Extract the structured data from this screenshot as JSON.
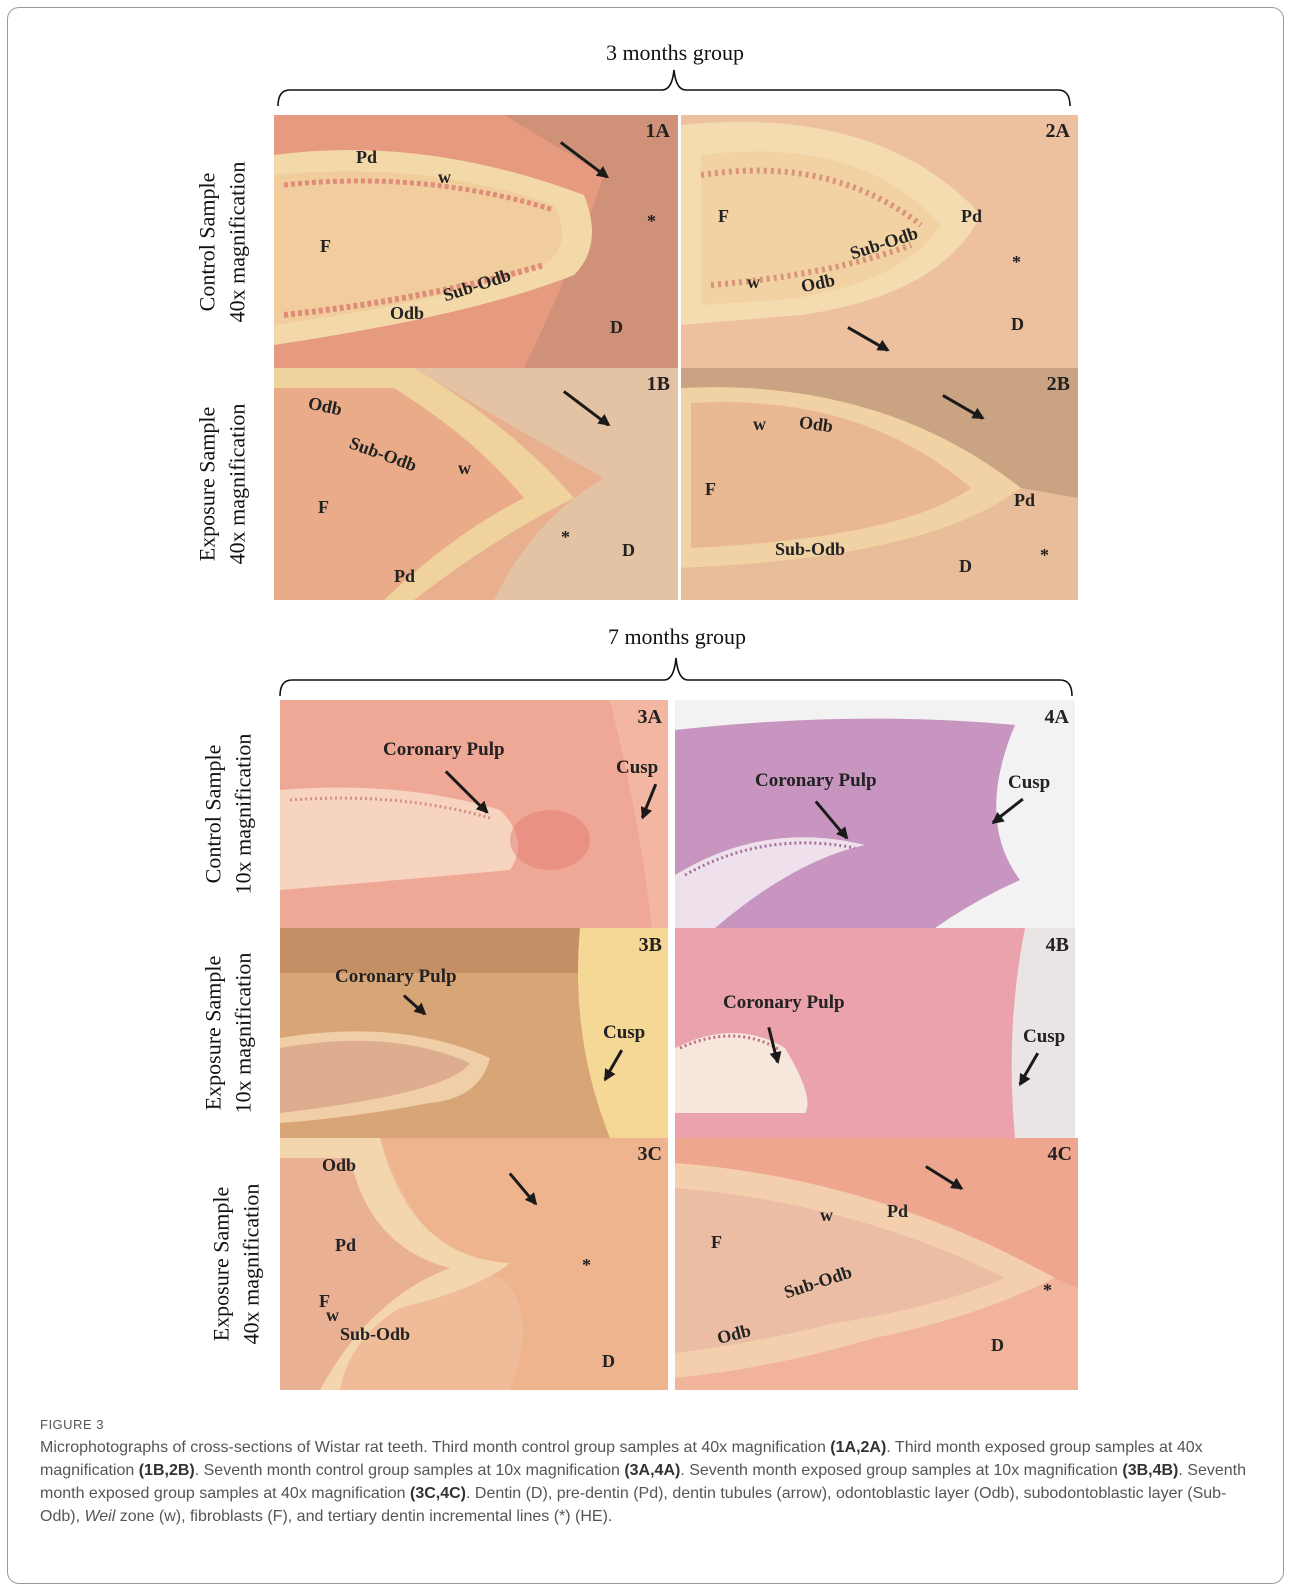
{
  "figure": {
    "group1_title": "3 months group",
    "group2_title": "7 months group",
    "rows": {
      "r1": [
        "Control Sample",
        "40x magnification"
      ],
      "r2": [
        "Exposure Sample",
        "40x magnification"
      ],
      "r3": [
        "Control Sample",
        "10x magnification"
      ],
      "r4": [
        "Exposure Sample",
        "10x magnification"
      ],
      "r5": [
        "Exposure Sample",
        "40x magnification"
      ]
    },
    "panels": {
      "p1A": {
        "id": "1A",
        "labels": [
          "Pd",
          "w",
          "*",
          "F",
          "Sub-Odb",
          "Odb",
          "D"
        ]
      },
      "p2A": {
        "id": "2A",
        "labels": [
          "F",
          "Pd",
          "Sub-Odb",
          "*",
          "w",
          "Odb",
          "D"
        ]
      },
      "p1B": {
        "id": "1B",
        "labels": [
          "Odb",
          "Sub-Odb",
          "w",
          "F",
          "*",
          "D",
          "Pd"
        ]
      },
      "p2B": {
        "id": "2B",
        "labels": [
          "w",
          "Odb",
          "F",
          "Pd",
          "Sub-Odb",
          "D",
          "*"
        ]
      },
      "p3A": {
        "id": "3A",
        "labels": [
          "Coronary Pulp",
          "Cusp"
        ]
      },
      "p4A": {
        "id": "4A",
        "labels": [
          "Coronary Pulp",
          "Cusp"
        ]
      },
      "p3B": {
        "id": "3B",
        "labels": [
          "Coronary Pulp",
          "Cusp"
        ]
      },
      "p4B": {
        "id": "4B",
        "labels": [
          "Coronary Pulp",
          "Cusp"
        ]
      },
      "p3C": {
        "id": "3C",
        "labels": [
          "Odb",
          "Pd",
          "*",
          "F",
          "w",
          "Sub-Odb",
          "D"
        ]
      },
      "p4C": {
        "id": "4C",
        "labels": [
          "w",
          "Pd",
          "F",
          "Sub-Odb",
          "*",
          "Odb",
          "D"
        ]
      }
    }
  },
  "caption": {
    "label": "FIGURE 3",
    "parts": [
      "Microphotographs of cross-sections of Wistar rat teeth. Third month control group samples at 40x magnification ",
      "(1A,2A)",
      ". Third month exposed group samples at 40x magnification ",
      "(1B,2B)",
      ". Seventh month control group samples at 10x magnification ",
      "(3A,4A)",
      ". Seventh month exposed group samples at 10x magnification ",
      "(3B,4B)",
      ". Seventh month exposed group samples at 40x magnification ",
      "(3C,4C)",
      ". Dentin (D), pre-dentin (Pd), dentin tubules (arrow), odontoblastic layer (Odb), subodontoblastic layer (Sub-Odb), ",
      "Weil",
      " zone (w), fibroblasts (F), and tertiary dentin incremental lines (*) (HE)."
    ]
  }
}
